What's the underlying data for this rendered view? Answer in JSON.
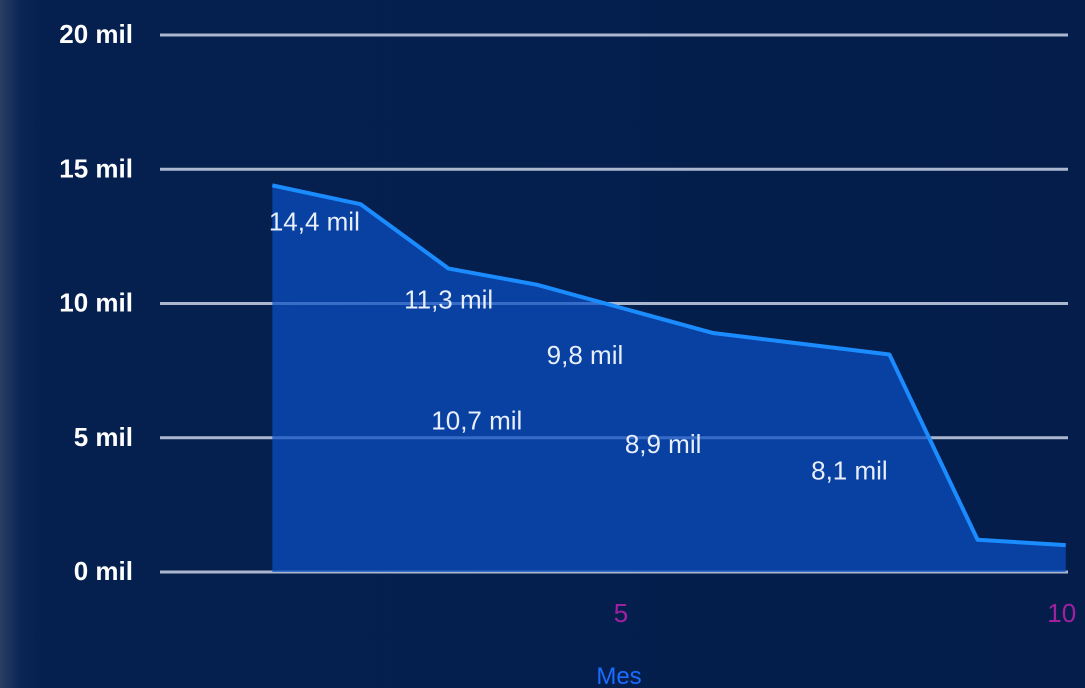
{
  "chart_data": {
    "type": "area",
    "x": [
      1,
      2,
      3,
      4,
      5,
      6,
      7,
      8,
      9,
      10
    ],
    "values": [
      14.4,
      13.7,
      11.3,
      10.7,
      9.8,
      8.9,
      8.5,
      8.1,
      1.2,
      1.0
    ],
    "data_labels": [
      {
        "x": 1,
        "text": "14,4 mil"
      },
      {
        "x": 3,
        "text": "11,3 mil"
      },
      {
        "x": 4,
        "text": "10,7 mil"
      },
      {
        "x": 5,
        "text": "9,8 mil"
      },
      {
        "x": 6,
        "text": "8,9 mil"
      },
      {
        "x": 8,
        "text": "8,1 mil"
      }
    ],
    "y_ticks": [
      0,
      5,
      10,
      15,
      20
    ],
    "y_tick_labels": [
      "0 mil",
      "5 mil",
      "10 mil",
      "15 mil",
      "20 mil"
    ],
    "x_ticks": [
      5,
      10
    ],
    "x_tick_labels": [
      "5",
      "10"
    ],
    "xlabel": "Mes",
    "ylabel": "",
    "title": "",
    "ylim": [
      0,
      20
    ],
    "xlim": [
      0.1,
      10.4
    ],
    "grid": true,
    "colors": {
      "line": "#1a8cff",
      "area": "#0a4fc4",
      "grid": "#c8d2e6",
      "y_tick_text": "#ffffff",
      "x_tick_text": "#a020a0",
      "xlabel_text": "#1a6cff",
      "data_label_text": "#e8eefa"
    }
  }
}
